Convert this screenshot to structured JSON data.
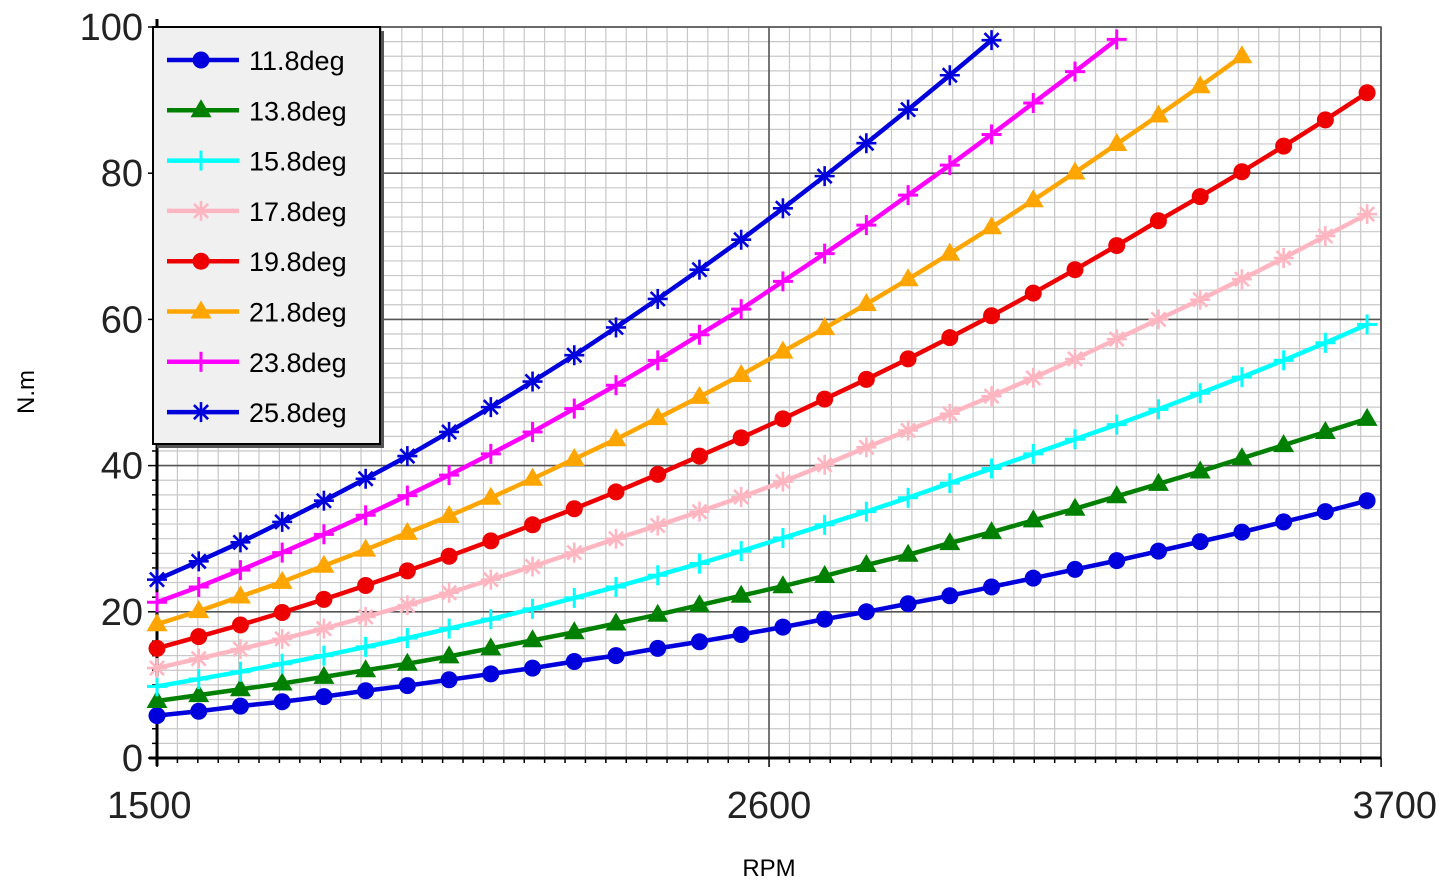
{
  "chart_data": {
    "type": "line",
    "xlabel": "RPM",
    "ylabel": "N.m",
    "xlim": [
      1500,
      3700
    ],
    "ylim": [
      0,
      100
    ],
    "xticks": [
      1500,
      2600,
      3700
    ],
    "yticks": [
      0,
      20,
      40,
      60,
      80,
      100
    ],
    "x_minor_step": 36.67,
    "y_minor_step": 2,
    "grid": true,
    "legend_position": "top-left",
    "series": [
      {
        "name": "11.8deg",
        "color": "#0000dd",
        "marker": "circle",
        "x": [
          1500,
          1575,
          1650,
          1725,
          1800,
          1875,
          1950,
          2025,
          2100,
          2175,
          2250,
          2325,
          2400,
          2475,
          2550,
          2625,
          2700,
          2775,
          2850,
          2925,
          3000,
          3075,
          3150,
          3225,
          3300,
          3375,
          3450,
          3525,
          3600,
          3675
        ],
        "y": [
          5.8,
          6.4,
          7.1,
          7.7,
          8.4,
          9.2,
          9.9,
          10.7,
          11.5,
          12.3,
          13.2,
          14.0,
          15.0,
          15.9,
          16.9,
          17.9,
          19.0,
          20.0,
          21.1,
          22.2,
          23.4,
          24.6,
          25.8,
          27.0,
          28.3,
          29.6,
          30.9,
          32.3,
          33.7,
          35.2
        ]
      },
      {
        "name": "13.8deg",
        "color": "#008000",
        "marker": "triangle",
        "x": [
          1500,
          1575,
          1650,
          1725,
          1800,
          1875,
          1950,
          2025,
          2100,
          2175,
          2250,
          2325,
          2400,
          2475,
          2550,
          2625,
          2700,
          2775,
          2850,
          2925,
          3000,
          3075,
          3150,
          3225,
          3300,
          3375,
          3450,
          3525,
          3600,
          3675
        ],
        "y": [
          7.8,
          8.6,
          9.4,
          10.2,
          11.1,
          12.0,
          12.9,
          13.9,
          15.0,
          16.1,
          17.2,
          18.4,
          19.6,
          20.9,
          22.2,
          23.5,
          24.9,
          26.4,
          27.8,
          29.4,
          30.9,
          32.5,
          34.1,
          35.8,
          37.5,
          39.2,
          41.0,
          42.8,
          44.6,
          46.4
        ]
      },
      {
        "name": "15.8deg",
        "color": "#00ffff",
        "marker": "plus",
        "x": [
          1500,
          1575,
          1650,
          1725,
          1800,
          1875,
          1950,
          2025,
          2100,
          2175,
          2250,
          2325,
          2400,
          2475,
          2550,
          2625,
          2700,
          2775,
          2850,
          2925,
          3000,
          3075,
          3150,
          3225,
          3300,
          3375,
          3450,
          3525,
          3600,
          3675
        ],
        "y": [
          9.8,
          10.8,
          11.8,
          12.9,
          14.0,
          15.2,
          16.4,
          17.7,
          19.0,
          20.4,
          21.9,
          23.4,
          25.0,
          26.6,
          28.3,
          30.1,
          31.9,
          33.7,
          35.6,
          37.6,
          39.6,
          41.6,
          43.6,
          45.6,
          47.7,
          49.9,
          52.1,
          54.4,
          56.8,
          59.3
        ]
      },
      {
        "name": "17.8deg",
        "color": "#ffb6c1",
        "marker": "asterisk",
        "x": [
          1500,
          1575,
          1650,
          1725,
          1800,
          1875,
          1950,
          2025,
          2100,
          2175,
          2250,
          2325,
          2400,
          2475,
          2550,
          2625,
          2700,
          2775,
          2850,
          2925,
          3000,
          3075,
          3150,
          3225,
          3300,
          3375,
          3450,
          3525,
          3600,
          3675
        ],
        "y": [
          12.3,
          13.6,
          14.9,
          16.3,
          17.7,
          19.3,
          20.9,
          22.6,
          24.4,
          26.2,
          28.1,
          30.0,
          31.8,
          33.7,
          35.7,
          37.8,
          40.1,
          42.5,
          44.8,
          47.1,
          49.5,
          52.0,
          54.6,
          57.3,
          60.0,
          62.7,
          65.5,
          68.4,
          71.4,
          74.4
        ]
      },
      {
        "name": "19.8deg",
        "color": "#ee0000",
        "marker": "circle",
        "x": [
          1500,
          1575,
          1650,
          1725,
          1800,
          1875,
          1950,
          2025,
          2100,
          2175,
          2250,
          2325,
          2400,
          2475,
          2550,
          2625,
          2700,
          2775,
          2850,
          2925,
          3000,
          3075,
          3150,
          3225,
          3300,
          3375,
          3450,
          3525,
          3600,
          3675
        ],
        "y": [
          15.0,
          16.6,
          18.2,
          19.9,
          21.7,
          23.6,
          25.6,
          27.6,
          29.7,
          31.9,
          34.1,
          36.4,
          38.8,
          41.3,
          43.8,
          46.4,
          49.1,
          51.8,
          54.6,
          57.5,
          60.5,
          63.6,
          66.8,
          70.1,
          73.5,
          76.8,
          80.2,
          83.7,
          87.3,
          91.0
        ]
      },
      {
        "name": "21.8deg",
        "color": "#ffa500",
        "marker": "triangle",
        "x": [
          1500,
          1575,
          1650,
          1725,
          1800,
          1875,
          1950,
          2025,
          2100,
          2175,
          2250,
          2325,
          2400,
          2475,
          2550,
          2625,
          2700,
          2775,
          2850,
          2925,
          3000,
          3075,
          3150,
          3225,
          3300,
          3375,
          3450
        ],
        "y": [
          18.3,
          20.1,
          22.1,
          24.1,
          26.3,
          28.5,
          30.8,
          33.1,
          35.6,
          38.2,
          40.9,
          43.6,
          46.5,
          49.4,
          52.4,
          55.6,
          58.8,
          62.1,
          65.5,
          69.0,
          72.6,
          76.3,
          80.1,
          84.0,
          87.9,
          91.9,
          96.0
        ]
      },
      {
        "name": "23.8deg",
        "color": "#ff00ff",
        "marker": "plus",
        "x": [
          1500,
          1575,
          1650,
          1725,
          1800,
          1875,
          1950,
          2025,
          2100,
          2175,
          2250,
          2325,
          2400,
          2475,
          2550,
          2625,
          2700,
          2775,
          2850,
          2925,
          3000,
          3075,
          3150,
          3225
        ],
        "y": [
          21.3,
          23.4,
          25.7,
          28.1,
          30.6,
          33.2,
          35.9,
          38.7,
          41.6,
          44.6,
          47.8,
          51.0,
          54.4,
          57.9,
          61.4,
          65.2,
          69.0,
          72.9,
          77.0,
          81.1,
          85.3,
          89.6,
          93.9,
          98.3
        ]
      },
      {
        "name": "25.8deg",
        "color": "#0000dd",
        "marker": "asterisk",
        "x": [
          1500,
          1575,
          1650,
          1725,
          1800,
          1875,
          1950,
          2025,
          2100,
          2175,
          2250,
          2325,
          2400,
          2475,
          2550,
          2625,
          2700,
          2775,
          2850,
          2925,
          3000
        ],
        "y": [
          24.4,
          26.9,
          29.5,
          32.3,
          35.2,
          38.2,
          41.3,
          44.6,
          48.0,
          51.5,
          55.1,
          58.9,
          62.8,
          66.8,
          70.9,
          75.2,
          79.6,
          84.1,
          88.7,
          93.4,
          98.2
        ]
      }
    ]
  }
}
